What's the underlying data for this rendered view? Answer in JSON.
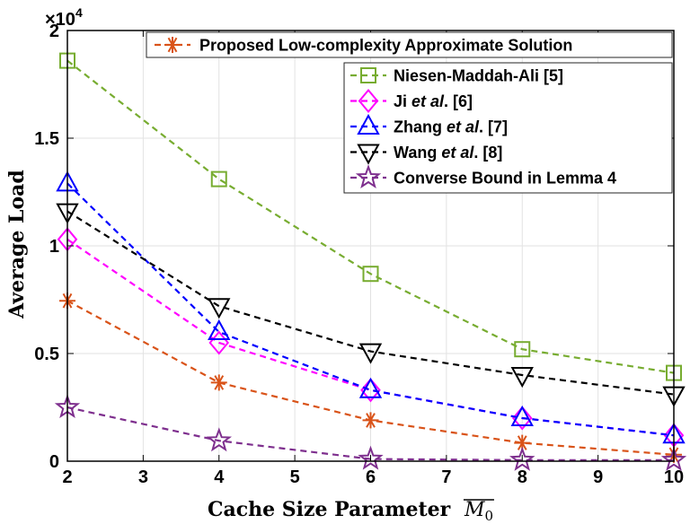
{
  "chart_data": {
    "type": "line",
    "title": "",
    "xlabel": "Cache Size Parameter",
    "xlabel_math": "M",
    "xlabel_sub": "0",
    "ylabel": "Average Load",
    "y_multiplier": "×10",
    "y_exponent": "4",
    "xlim": [
      2,
      10
    ],
    "ylim": [
      0,
      2
    ],
    "xticks": [
      "2",
      "3",
      "4",
      "5",
      "6",
      "7",
      "8",
      "9",
      "10"
    ],
    "yticks": [
      "0",
      "0.5",
      "1",
      "1.5",
      "2"
    ],
    "x": [
      2,
      4,
      6,
      8,
      10
    ],
    "grid": true,
    "series": [
      {
        "name": "Proposed Low-complexity Approximate Solution",
        "color": "#d95319",
        "marker": "asterisk",
        "values": [
          0.745,
          0.365,
          0.19,
          0.085,
          0.03
        ]
      },
      {
        "name": "Niesen-Maddah-Ali [5]",
        "color": "#77ac30",
        "marker": "square",
        "values": [
          1.86,
          1.31,
          0.87,
          0.52,
          0.41
        ]
      },
      {
        "name": "Ji et al. [6]",
        "color": "#ff00ff",
        "marker": "diamond",
        "values": [
          1.03,
          0.55,
          0.33,
          0.2,
          0.12
        ]
      },
      {
        "name": "Zhang et al. [7]",
        "color": "#0000ff",
        "marker": "triangle-up",
        "values": [
          1.29,
          0.6,
          0.33,
          0.2,
          0.12
        ]
      },
      {
        "name": "Wang et al. [8]",
        "color": "#000000",
        "marker": "triangle-down",
        "values": [
          1.16,
          0.72,
          0.51,
          0.4,
          0.31
        ]
      },
      {
        "name": "Converse Bound in Lemma 4",
        "color": "#7e2f8e",
        "marker": "star",
        "values": [
          0.25,
          0.095,
          0.01,
          0.005,
          0.005
        ]
      }
    ],
    "legends": [
      {
        "location": "top-right",
        "entries": [
          "Proposed Low-complexity Approximate Solution"
        ]
      },
      {
        "location": "top-right",
        "entries": [
          {
            "pre": "Niesen-Maddah-Ali [5]",
            "it": "",
            "post": ""
          },
          {
            "pre": "Ji ",
            "it": "et al",
            "post": ". [6]"
          },
          {
            "pre": "Zhang ",
            "it": "et al",
            "post": ". [7]"
          },
          {
            "pre": "Wang ",
            "it": "et al",
            "post": ". [8]"
          },
          {
            "pre": "Converse Bound in Lemma 4",
            "it": "",
            "post": ""
          }
        ]
      }
    ]
  }
}
